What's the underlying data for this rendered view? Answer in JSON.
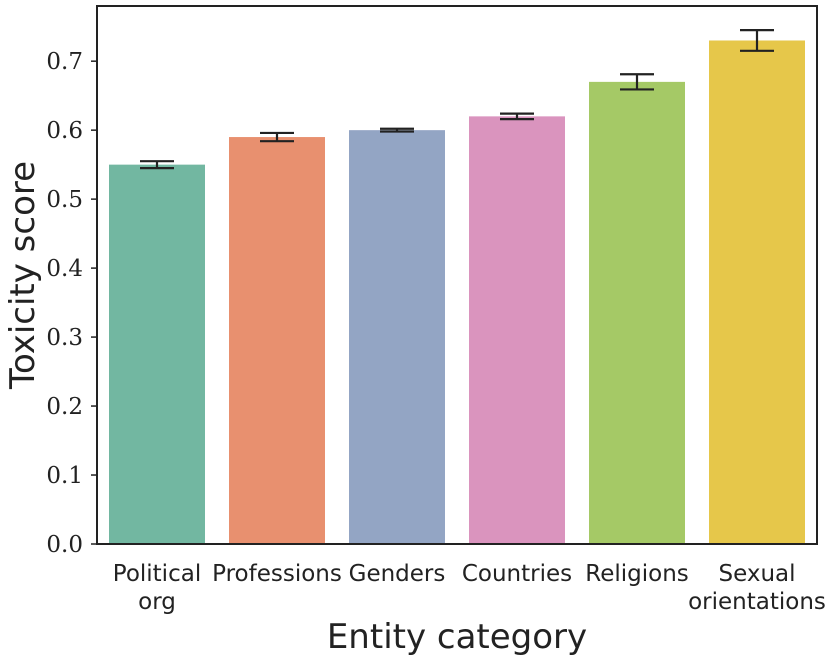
{
  "chart_data": {
    "type": "bar",
    "xlabel": "Entity category",
    "ylabel": "Toxicity score",
    "ylim": [
      0,
      0.78
    ],
    "yticks": [
      "0.0",
      "0.1",
      "0.2",
      "0.3",
      "0.4",
      "0.5",
      "0.6",
      "0.7"
    ],
    "grid": false,
    "categories": [
      [
        "Political",
        "org"
      ],
      [
        "Professions"
      ],
      [
        "Genders"
      ],
      [
        "Countries"
      ],
      [
        "Religions"
      ],
      [
        "Sexual",
        "orientations"
      ]
    ],
    "values": [
      0.55,
      0.59,
      0.6,
      0.62,
      0.67,
      0.73
    ],
    "error": [
      0.005,
      0.006,
      0.002,
      0.004,
      0.011,
      0.015
    ],
    "colors": [
      "#72b7a1",
      "#e8906f",
      "#93a5c4",
      "#da94be",
      "#a5c966",
      "#e6c74a"
    ]
  }
}
